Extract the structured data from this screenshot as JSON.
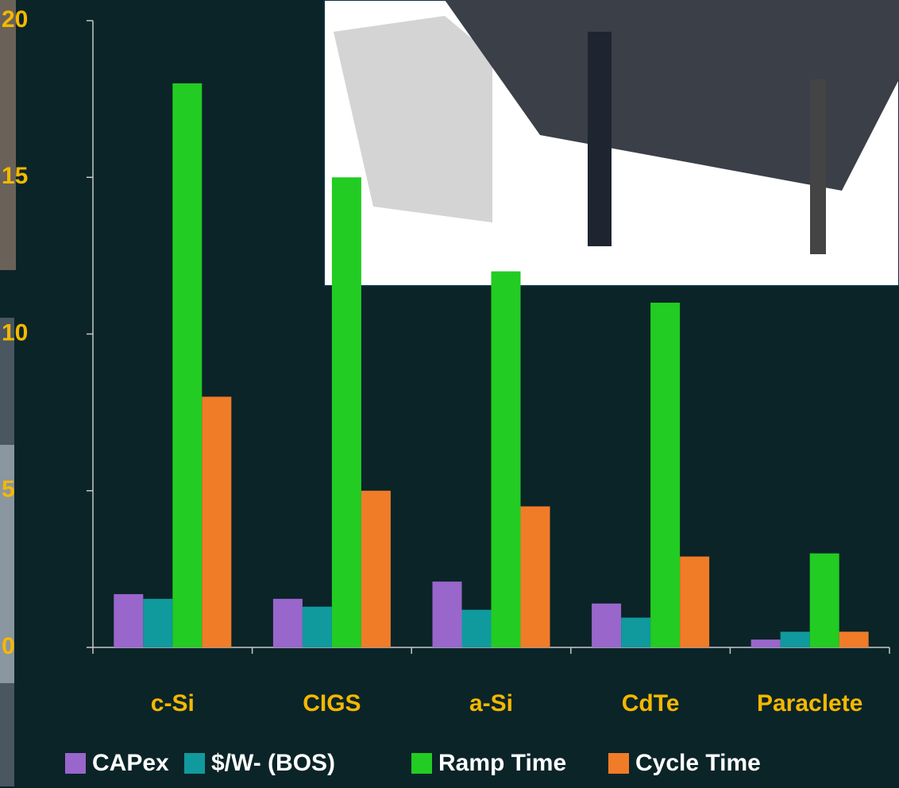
{
  "chart_data": {
    "type": "bar",
    "categories": [
      "c-Si",
      "CIGS",
      "a-Si",
      "CdTe",
      "Paraclete"
    ],
    "series": [
      {
        "name": "CAPex",
        "color": "#9966cc",
        "values": [
          1.7,
          1.55,
          2.1,
          1.4,
          0.25
        ]
      },
      {
        "name": "$/W- (BOS)",
        "color": "#109a9e",
        "values": [
          1.55,
          1.3,
          1.2,
          0.95,
          0.5
        ]
      },
      {
        "name": "Ramp Time",
        "color": "#22cc22",
        "values": [
          18,
          15,
          12,
          11,
          3
        ]
      },
      {
        "name": "Cycle Time",
        "color": "#f07c28",
        "values": [
          8,
          5,
          4.5,
          2.9,
          0.5
        ]
      }
    ],
    "ylim": [
      0,
      20
    ],
    "yticks": [
      0,
      5,
      10,
      15,
      20
    ]
  }
}
